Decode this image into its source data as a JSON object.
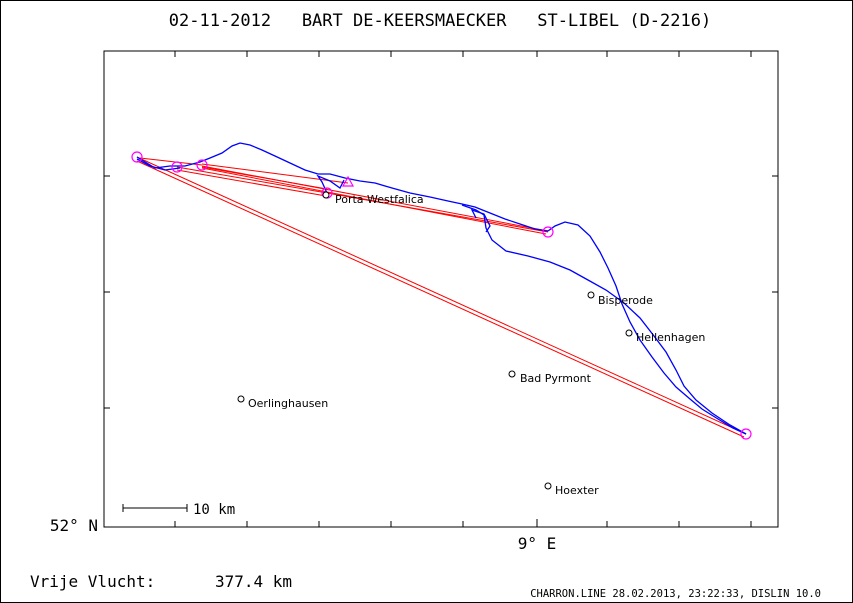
{
  "title": "02-11-2012   BART DE-KEERSMAECKER   ST-LIBEL (D-2216)",
  "axis": {
    "lat_label": "52° N",
    "lon_label": "9° E"
  },
  "scale_bar": {
    "label": "10 km"
  },
  "footer": {
    "distance_label": "Vrije Vlucht:",
    "distance_value": "377.4 km",
    "credit": "CHARRON.LINE 28.02.2013, 23:22:33, DISLIN 10.0"
  },
  "places": [
    {
      "id": "porta-westfalica",
      "name": "Porta Westfalica"
    },
    {
      "id": "bisperode",
      "name": "Bisperode"
    },
    {
      "id": "hellenhagen",
      "name": "Hellenhagen"
    },
    {
      "id": "bad-pyrmont",
      "name": "Bad Pyrmont"
    },
    {
      "id": "oerlinghausen",
      "name": "Oerlinghausen"
    },
    {
      "id": "hoexter",
      "name": "Hoexter"
    }
  ],
  "colors": {
    "track": "#0000ff",
    "task": "#ff0000",
    "turnpoint": "#ff00ff",
    "frame": "#000000"
  }
}
